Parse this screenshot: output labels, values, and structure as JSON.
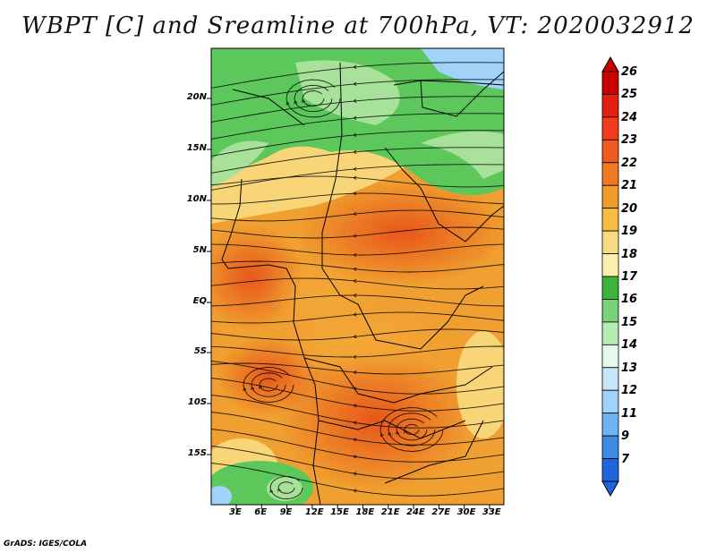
{
  "title": "WBPT [C] and Sreamline at 700hPa, VT: 2020032912",
  "credit": "GrADS: IGES/COLA",
  "map": {
    "field": "Wet-bulb potential temperature",
    "units": "C",
    "level": "700hPa",
    "valid_time": "2020032912",
    "lat_labels": [
      "20N",
      "15N",
      "10N",
      "5N",
      "EQ",
      "5S",
      "10S",
      "15S"
    ],
    "lon_labels": [
      "3E",
      "6E",
      "9E",
      "12E",
      "15E",
      "18E",
      "21E",
      "24E",
      "27E",
      "30E",
      "33E"
    ],
    "colors": {
      "warm_core": "#e8641e",
      "warm": "#f0a030",
      "mild": "#f8d678",
      "cool_green": "#5cc85c",
      "pale_green": "#a8e29a",
      "streamline": "#000000",
      "border": "#000000"
    }
  },
  "colorbar": {
    "levels": [
      "26",
      "25",
      "24",
      "23",
      "22",
      "21",
      "20",
      "19",
      "18",
      "17",
      "16",
      "15",
      "14",
      "13",
      "12",
      "11",
      "9",
      "7"
    ],
    "colors": [
      "#c80000",
      "#e02010",
      "#f03c18",
      "#f05a1e",
      "#f07a22",
      "#f09c28",
      "#f8bc40",
      "#fadc80",
      "#fcf0b0",
      "#3cb43c",
      "#78d278",
      "#b4ecb4",
      "#e6f8f0",
      "#c8e6fa",
      "#a0d2fa",
      "#6eb4f0",
      "#3c8ce6",
      "#1e64dc"
    ]
  }
}
